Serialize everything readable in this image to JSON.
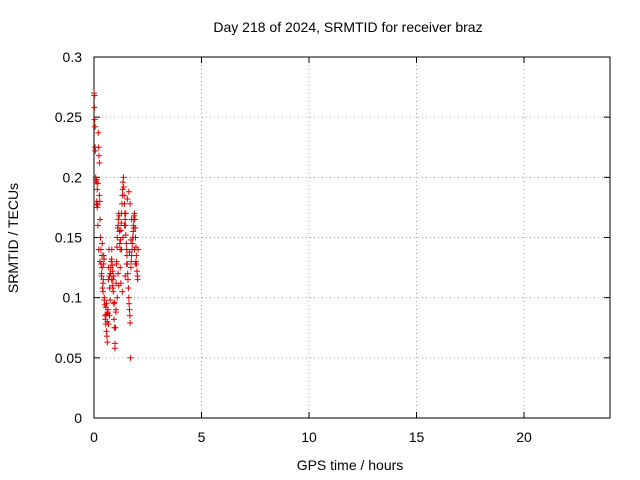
{
  "chart_data": {
    "type": "scatter",
    "title": "Day 218 of 2024, SRMTID for receiver braz",
    "xlabel": "GPS time / hours",
    "ylabel": "SRMTID / TECUs",
    "xlim": [
      0,
      24
    ],
    "ylim": [
      0,
      0.3
    ],
    "xticks": [
      0,
      5,
      10,
      15,
      20
    ],
    "xtick_labels": [
      "0",
      "5",
      "10",
      "15",
      "20"
    ],
    "yticks": [
      0,
      0.05,
      0.1,
      0.15,
      0.2,
      0.25,
      0.3
    ],
    "ytick_labels": [
      "0",
      "0.05",
      "0.1",
      "0.15",
      "0.2",
      "0.25",
      "0.3"
    ],
    "grid": true,
    "marker": "+",
    "color": "#e00000",
    "series": [
      {
        "name": "braz",
        "x": [
          0.0,
          0.02,
          0.03,
          0.05,
          0.06,
          0.08,
          0.1,
          0.12,
          0.13,
          0.15,
          0.17,
          0.18,
          0.2,
          0.22,
          0.23,
          0.25,
          0.27,
          0.28,
          0.3,
          0.32,
          0.33,
          0.35,
          0.37,
          0.38,
          0.4,
          0.42,
          0.43,
          0.45,
          0.47,
          0.48,
          0.5,
          0.52,
          0.53,
          0.55,
          0.57,
          0.58,
          0.6,
          0.62,
          0.63,
          0.65,
          0.67,
          0.68,
          0.7,
          0.72,
          0.73,
          0.75,
          0.77,
          0.78,
          0.8,
          0.82,
          0.83,
          0.85,
          0.87,
          0.88,
          0.9,
          0.92,
          0.93,
          0.95,
          0.97,
          0.98,
          1.0,
          1.02,
          1.03,
          1.05,
          1.07,
          1.08,
          1.1,
          1.12,
          1.13,
          1.15,
          1.17,
          1.18,
          1.2,
          1.22,
          1.23,
          1.25,
          1.27,
          1.28,
          1.3,
          1.32,
          1.33,
          1.35,
          1.37,
          1.38,
          1.4,
          1.42,
          1.43,
          1.45,
          1.47,
          1.48,
          1.5,
          1.52,
          1.53,
          1.55,
          1.57,
          1.58,
          1.6,
          1.62,
          1.63,
          1.65,
          1.67,
          1.68,
          1.7,
          1.72,
          1.73,
          1.75,
          1.77,
          1.78,
          1.8,
          1.82,
          1.83,
          1.85,
          1.87,
          1.88,
          1.9,
          1.92,
          1.93,
          1.95,
          1.97,
          1.98,
          2.0,
          2.02,
          2.03,
          0.05,
          0.08,
          0.12,
          0.18,
          0.22,
          0.28,
          0.35,
          0.42,
          0.48,
          0.55,
          0.62,
          0.68,
          0.75,
          0.82,
          0.88,
          0.95,
          1.02,
          1.08,
          1.15,
          1.22,
          1.28,
          1.35,
          1.42,
          1.48,
          1.55,
          1.62,
          1.68,
          1.75,
          1.82,
          1.88,
          1.95,
          0.02,
          0.15,
          0.25,
          0.38,
          0.45,
          0.58,
          0.65,
          0.72,
          0.85,
          0.92,
          1.05,
          1.12,
          1.25,
          1.32,
          1.45,
          1.52,
          1.65,
          1.72,
          1.85,
          1.92,
          2.05
        ],
        "y": [
          0.27,
          0.258,
          0.248,
          0.225,
          0.222,
          0.2,
          0.196,
          0.198,
          0.18,
          0.175,
          0.177,
          0.195,
          0.237,
          0.225,
          0.218,
          0.212,
          0.18,
          0.165,
          0.15,
          0.14,
          0.128,
          0.118,
          0.135,
          0.125,
          0.108,
          0.105,
          0.115,
          0.128,
          0.132,
          0.098,
          0.094,
          0.085,
          0.082,
          0.078,
          0.086,
          0.072,
          0.068,
          0.063,
          0.088,
          0.087,
          0.115,
          0.125,
          0.14,
          0.118,
          0.108,
          0.098,
          0.12,
          0.125,
          0.13,
          0.132,
          0.14,
          0.127,
          0.122,
          0.115,
          0.105,
          0.095,
          0.082,
          0.075,
          0.058,
          0.062,
          0.075,
          0.09,
          0.112,
          0.128,
          0.142,
          0.15,
          0.158,
          0.16,
          0.165,
          0.17,
          0.168,
          0.155,
          0.145,
          0.14,
          0.148,
          0.156,
          0.162,
          0.17,
          0.178,
          0.185,
          0.19,
          0.196,
          0.2,
          0.192,
          0.185,
          0.178,
          0.17,
          0.165,
          0.16,
          0.152,
          0.145,
          0.14,
          0.135,
          0.128,
          0.12,
          0.115,
          0.108,
          0.1,
          0.095,
          0.09,
          0.085,
          0.079,
          0.05,
          0.125,
          0.13,
          0.135,
          0.14,
          0.145,
          0.15,
          0.155,
          0.16,
          0.165,
          0.168,
          0.17,
          0.165,
          0.158,
          0.15,
          0.142,
          0.135,
          0.128,
          0.122,
          0.118,
          0.115,
          0.242,
          0.198,
          0.178,
          0.16,
          0.14,
          0.13,
          0.12,
          0.112,
          0.1,
          0.092,
          0.08,
          0.078,
          0.12,
          0.115,
          0.108,
          0.096,
          0.088,
          0.1,
          0.11,
          0.125,
          0.14,
          0.15,
          0.16,
          0.17,
          0.182,
          0.188,
          0.178,
          0.165,
          0.15,
          0.14,
          0.13,
          0.268,
          0.19,
          0.185,
          0.145,
          0.135,
          0.095,
          0.09,
          0.085,
          0.11,
          0.118,
          0.13,
          0.12,
          0.112,
          0.105,
          0.118,
          0.128,
          0.138,
          0.148,
          0.158,
          0.128,
          0.14
        ]
      }
    ]
  }
}
